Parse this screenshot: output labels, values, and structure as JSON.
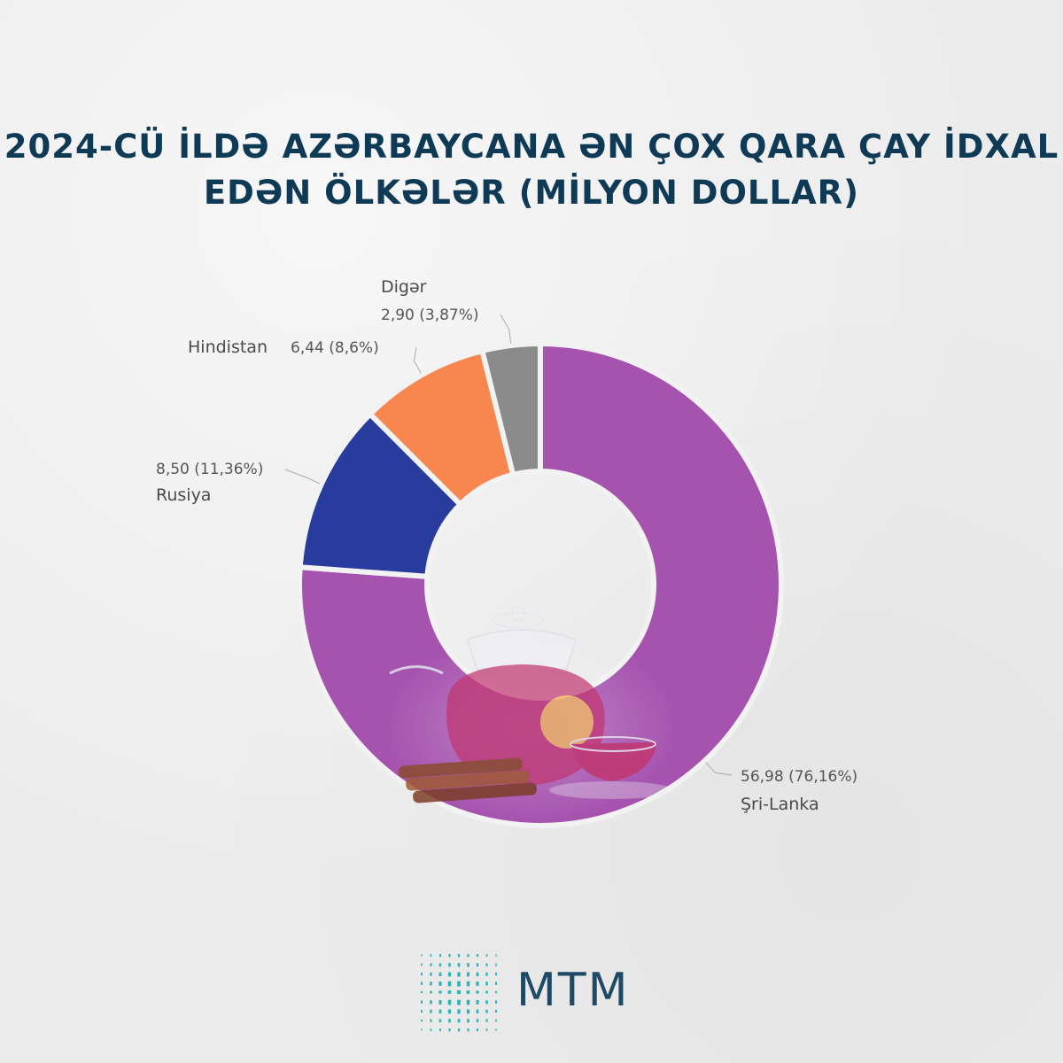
{
  "title": {
    "line1": "2024-CÜ İLDƏ AZƏRBAYCANA ƏN ÇOX QARA ÇAY İDXAL",
    "line2": "EDƏN ÖLKƏLƏR (MİLYON DOLLAR)"
  },
  "chart_data": {
    "type": "pie",
    "donut": true,
    "title": "2024-CÜ İLDƏ AZƏRBAYCANA ƏN ÇOX QARA ÇAY İDXAL EDƏN ÖLKƏLƏR (MİLYON DOLLAR)",
    "slices": [
      {
        "label": "Şri-Lanka",
        "value": 56.98,
        "value_text": "56,98 (76,16%)",
        "percent": 76.16,
        "color": "#a553ae"
      },
      {
        "label": "Rusiya",
        "value": 8.5,
        "value_text": "8,50 (11,36%)",
        "percent": 11.36,
        "color": "#283c9e"
      },
      {
        "label": "Hindistan",
        "value": 6.44,
        "value_text": "6,44 (8,6%)",
        "percent": 8.6,
        "color": "#f7874e"
      },
      {
        "label": "Digər",
        "value": 2.9,
        "value_text": "2,90 (3,87%)",
        "percent": 3.87,
        "color": "#8b8b8b"
      }
    ]
  },
  "logo": {
    "text": "MTM",
    "color": "#2bb5b6"
  }
}
